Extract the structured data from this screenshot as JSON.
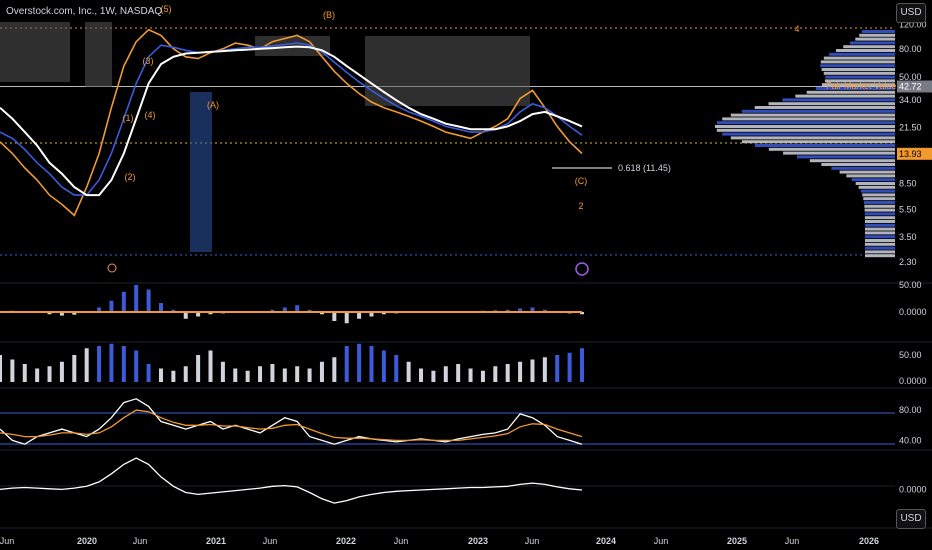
{
  "header": {
    "title": "Overstock.com, Inc., 1W, NASDAQ",
    "top_cut": "..."
  },
  "currency": {
    "top": "USD",
    "bottom": "USD"
  },
  "annotations": {
    "waves": [
      "(1)",
      "(2)",
      "(3)",
      "(4)",
      "(5)",
      "(A)",
      "(B)",
      "(C)",
      "4",
      "2"
    ],
    "fib": "0.618 (11.45)",
    "fmv": "Fair Market Value"
  },
  "badges": {
    "current": "13.93",
    "fair": "42.72"
  },
  "chart_data": {
    "type": "line",
    "title": "Overstock.com, Inc., 1W, NASDAQ",
    "price_axis_ticks": [
      "120.00",
      "80.00",
      "50.00",
      "34.00",
      "21.50",
      "13.50",
      "8.50",
      "5.50",
      "3.50",
      "2.30"
    ],
    "price_scale": "log",
    "x_tick_labels": [
      "Jun",
      "2020",
      "Jun",
      "2021",
      "Jun",
      "2022",
      "Jun",
      "2023",
      "Jun",
      "2024",
      "Jun",
      "2025",
      "Jun",
      "2026"
    ],
    "series": [
      {
        "values": [
          17,
          14,
          11,
          9,
          7,
          6,
          5,
          8,
          14,
          30,
          60,
          90,
          110,
          100,
          80,
          70,
          68,
          75,
          80,
          88,
          85,
          80,
          90,
          95,
          100,
          90,
          70,
          55,
          45,
          38,
          33,
          30,
          28,
          26,
          24,
          22,
          20,
          19,
          18,
          20,
          22,
          25,
          35,
          40,
          30,
          22,
          17,
          14
        ]
      },
      {
        "values": [
          20,
          18,
          15,
          12,
          10,
          8,
          7,
          7,
          9,
          14,
          25,
          45,
          70,
          85,
          82,
          78,
          75,
          76,
          78,
          80,
          82,
          82,
          84,
          86,
          88,
          85,
          76,
          64,
          54,
          46,
          40,
          35,
          31,
          28,
          26,
          24,
          22,
          21,
          20,
          20,
          21,
          23,
          28,
          32,
          30,
          26,
          22,
          19
        ]
      },
      {
        "values": [
          30,
          25,
          20,
          16,
          12,
          10,
          8,
          7,
          7,
          9,
          14,
          25,
          45,
          62,
          70,
          74,
          75,
          76,
          77,
          78,
          79,
          80,
          81,
          82,
          83,
          82,
          78,
          70,
          60,
          52,
          45,
          39,
          34,
          30,
          27,
          25,
          23,
          22,
          21,
          21,
          21,
          22,
          24,
          27,
          28,
          26,
          24,
          22
        ]
      }
    ],
    "levels": [
      {
        "label": "42.72",
        "value": 42.72
      },
      {
        "label": "13.93",
        "value": 13.93
      },
      {
        "label": "0.618 (11.45)",
        "value": 11.45
      }
    ],
    "panes": [
      {
        "name": "osc1",
        "ticks": [
          "50.00",
          "0.0000"
        ],
        "series": [
          {
            "values": [
              2,
              3,
              1,
              -2,
              -5,
              -8,
              -6,
              0,
              10,
              25,
              45,
              60,
              50,
              20,
              5,
              -15,
              -10,
              -5,
              -3,
              -2,
              0,
              2,
              5,
              10,
              15,
              5,
              -5,
              -20,
              -25,
              -15,
              -10,
              -5,
              -3,
              -2,
              -1,
              0,
              0,
              1,
              2,
              3,
              4,
              5,
              8,
              10,
              5,
              0,
              -3,
              -5
            ]
          },
          {
            "values": [
              0,
              0,
              0,
              0,
              0,
              0,
              0,
              0,
              0,
              0,
              0,
              0,
              0,
              0,
              0,
              0,
              0,
              0,
              0,
              0,
              0,
              0,
              0,
              0,
              0,
              0,
              0,
              0,
              0,
              0,
              0,
              0,
              0,
              0,
              0,
              0,
              0,
              0,
              0,
              0,
              0,
              0,
              0,
              0,
              0,
              0,
              0,
              0
            ]
          }
        ]
      },
      {
        "name": "bars2",
        "ticks": [
          "50.00",
          "0.0000"
        ],
        "series": [
          {
            "values": [
              60,
              50,
              40,
              30,
              35,
              45,
              60,
              75,
              80,
              85,
              80,
              70,
              40,
              30,
              25,
              35,
              60,
              70,
              45,
              30,
              25,
              35,
              40,
              30,
              35,
              30,
              45,
              55,
              80,
              85,
              80,
              70,
              60,
              45,
              30,
              25,
              35,
              40,
              30,
              25,
              35,
              40,
              45,
              50,
              55,
              60,
              65,
              75
            ]
          }
        ]
      },
      {
        "name": "rsi",
        "ticks": [
          "80.00",
          "40.00"
        ],
        "series": [
          {
            "values": [
              55,
              40,
              35,
              45,
              50,
              55,
              50,
              45,
              55,
              70,
              90,
              95,
              85,
              65,
              60,
              55,
              60,
              65,
              55,
              60,
              55,
              50,
              60,
              70,
              65,
              45,
              40,
              35,
              40,
              45,
              42,
              40,
              38,
              40,
              42,
              40,
              38,
              42,
              45,
              48,
              50,
              55,
              75,
              70,
              60,
              45,
              40,
              35
            ]
          },
          {
            "values": [
              50,
              48,
              45,
              45,
              47,
              50,
              50,
              48,
              50,
              58,
              70,
              80,
              78,
              70,
              64,
              60,
              60,
              61,
              59,
              59,
              57,
              55,
              56,
              60,
              61,
              55,
              49,
              44,
              43,
              43,
              42,
              41,
              40,
              40,
              41,
              40,
              40,
              40,
              42,
              44,
              46,
              49,
              58,
              62,
              61,
              55,
              50,
              45
            ]
          }
        ]
      },
      {
        "name": "osc2",
        "ticks": [
          "0.0000"
        ],
        "series": [
          {
            "values": [
              0,
              2,
              3,
              2,
              1,
              0,
              2,
              5,
              12,
              25,
              40,
              50,
              40,
              20,
              5,
              -5,
              -8,
              -6,
              -4,
              -2,
              0,
              2,
              5,
              6,
              4,
              -5,
              -15,
              -22,
              -18,
              -12,
              -8,
              -5,
              -3,
              -2,
              -1,
              0,
              1,
              2,
              3,
              3,
              4,
              5,
              8,
              10,
              8,
              4,
              1,
              -1
            ]
          }
        ]
      }
    ]
  }
}
